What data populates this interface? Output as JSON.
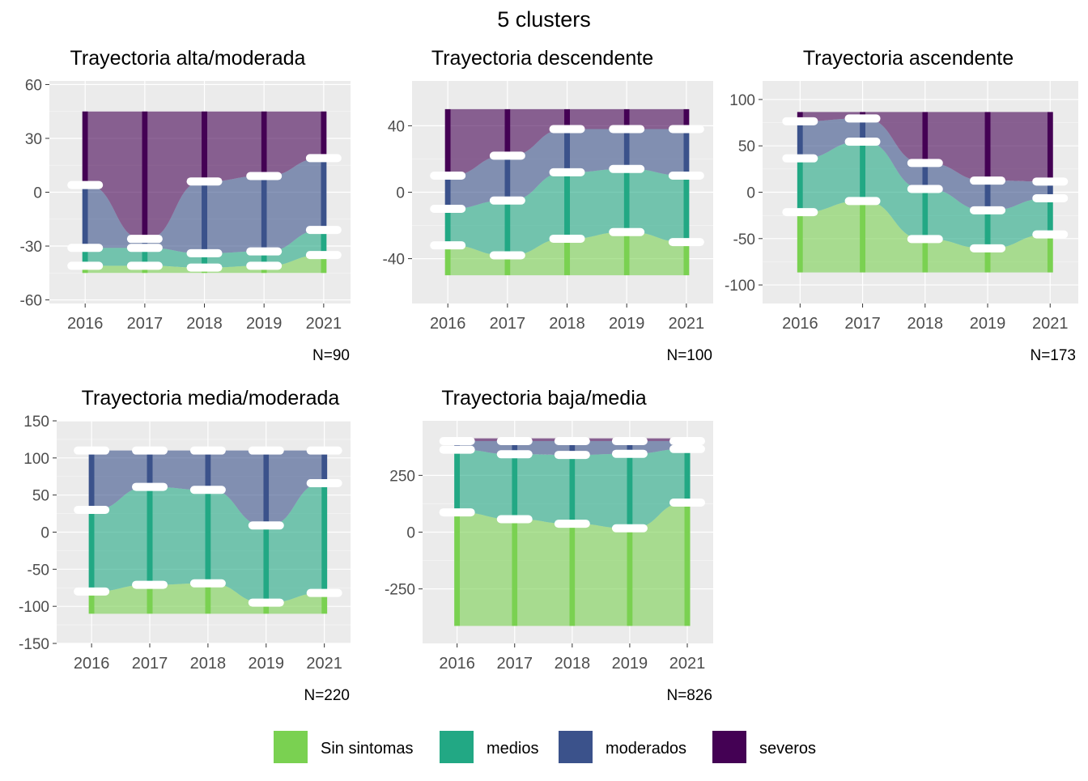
{
  "page_title": "5 clusters",
  "legend": {
    "position": "bottom",
    "items": [
      {
        "label": "Sin sintomas",
        "color": "#7AD151"
      },
      {
        "label": "medios",
        "color": "#22A884"
      },
      {
        "label": "moderados",
        "color": "#3B528B"
      },
      {
        "label": "severos",
        "color": "#440154"
      }
    ]
  },
  "chart_data": [
    {
      "type": "alluvial",
      "title": "Trayectoria alta/moderada",
      "caption": "N=90",
      "categories": [
        "2016",
        "2017",
        "2018",
        "2019",
        "2021"
      ],
      "yticks": [
        60,
        30,
        0,
        -30,
        -60
      ],
      "ylim": [
        -62,
        62
      ],
      "series": [
        {
          "name": "Sin sintomas",
          "values": [
            4,
            4,
            3,
            4,
            10
          ]
        },
        {
          "name": "medios",
          "values": [
            10,
            10,
            8,
            8,
            14
          ]
        },
        {
          "name": "moderados",
          "values": [
            35,
            5,
            40,
            42,
            40
          ]
        },
        {
          "name": "severos",
          "values": [
            41,
            71,
            39,
            36,
            26
          ]
        }
      ]
    },
    {
      "type": "alluvial",
      "title": "Trayectoria descendente",
      "caption": "N=100",
      "categories": [
        "2016",
        "2017",
        "2018",
        "2019",
        "2021"
      ],
      "yticks": [
        40,
        0,
        -40
      ],
      "ylim": [
        -67,
        67
      ],
      "series": [
        {
          "name": "Sin sintomas",
          "values": [
            18,
            12,
            22,
            26,
            20
          ]
        },
        {
          "name": "medios",
          "values": [
            22,
            33,
            40,
            38,
            40
          ]
        },
        {
          "name": "moderados",
          "values": [
            20,
            27,
            26,
            24,
            28
          ]
        },
        {
          "name": "severos",
          "values": [
            40,
            28,
            12,
            12,
            12
          ]
        }
      ]
    },
    {
      "type": "alluvial",
      "title": "Trayectoria ascendente",
      "caption": "N=173",
      "categories": [
        "2016",
        "2017",
        "2018",
        "2019",
        "2021"
      ],
      "yticks": [
        100,
        50,
        0,
        -50,
        -100
      ],
      "ylim": [
        -120,
        120
      ],
      "series": [
        {
          "name": "Sin sintomas",
          "values": [
            65,
            77,
            36,
            26,
            41
          ]
        },
        {
          "name": "medios",
          "values": [
            58,
            64,
            54,
            41,
            39
          ]
        },
        {
          "name": "moderados",
          "values": [
            40,
            25,
            28,
            32,
            18
          ]
        },
        {
          "name": "severos",
          "values": [
            10,
            7,
            55,
            74,
            75
          ]
        }
      ]
    },
    {
      "type": "alluvial",
      "title": "Trayectoria media/moderada",
      "caption": "N=220",
      "categories": [
        "2016",
        "2017",
        "2018",
        "2019",
        "2021"
      ],
      "yticks": [
        150,
        100,
        50,
        0,
        -50,
        -100,
        -150
      ],
      "ylim": [
        -150,
        150
      ],
      "series": [
        {
          "name": "Sin sintomas",
          "values": [
            30,
            39,
            41,
            15,
            28
          ]
        },
        {
          "name": "medios",
          "values": [
            110,
            132,
            126,
            104,
            148
          ]
        },
        {
          "name": "moderados",
          "values": [
            80,
            49,
            53,
            101,
            44
          ]
        },
        {
          "name": "severos",
          "values": [
            0,
            0,
            0,
            0,
            0
          ]
        }
      ]
    },
    {
      "type": "alluvial",
      "title": "Trayectoria baja/media",
      "caption": "N=826",
      "categories": [
        "2016",
        "2017",
        "2018",
        "2019",
        "2021"
      ],
      "yticks": [
        250,
        0,
        -250
      ],
      "ylim": [
        -490,
        490
      ],
      "series": [
        {
          "name": "Sin sintomas",
          "values": [
            500,
            470,
            450,
            430,
            543
          ]
        },
        {
          "name": "medios",
          "values": [
            276,
            286,
            303,
            328,
            236
          ]
        },
        {
          "name": "moderados",
          "values": [
            38,
            58,
            61,
            56,
            35
          ]
        },
        {
          "name": "severos",
          "values": [
            12,
            12,
            12,
            12,
            12
          ]
        }
      ]
    }
  ]
}
